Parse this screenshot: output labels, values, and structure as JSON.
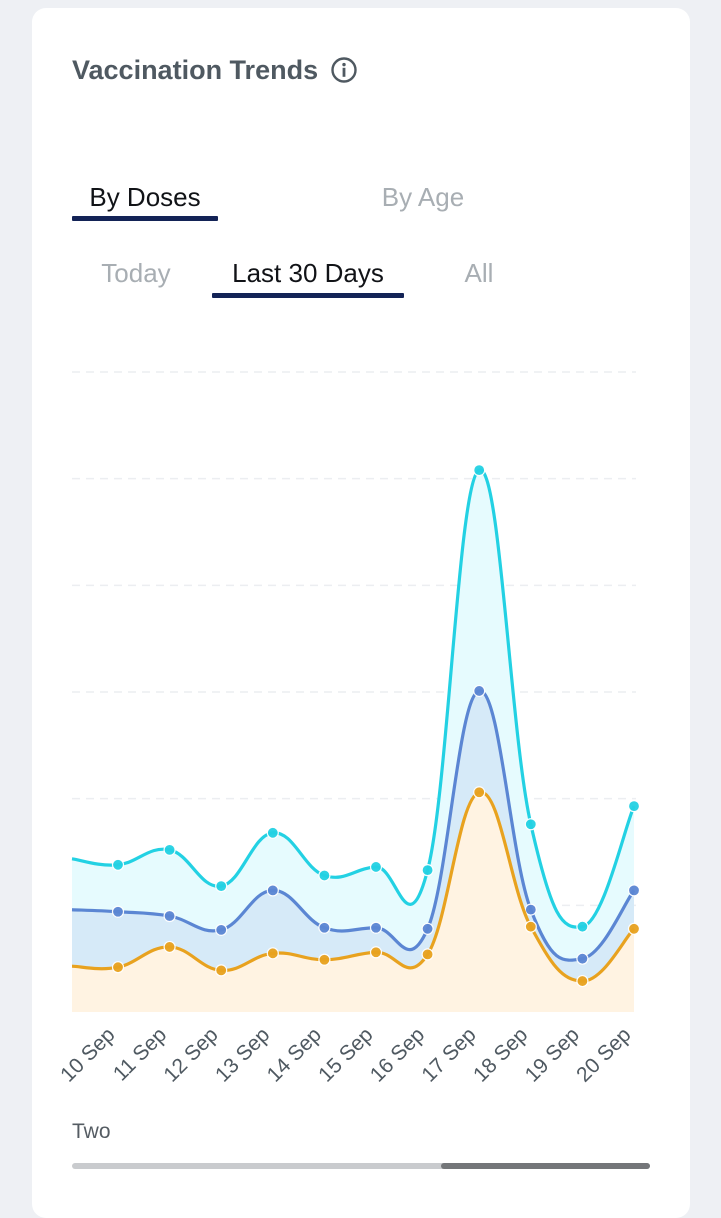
{
  "card": {
    "title": "Vaccination Trends",
    "info_icon": "info-circle-icon"
  },
  "tabs_main": [
    {
      "label": "By Doses",
      "active": true
    },
    {
      "label": "By Age",
      "active": false
    }
  ],
  "tabs_sub": [
    {
      "label": "Today",
      "active": false
    },
    {
      "label": "Last 30 Days",
      "active": true
    },
    {
      "label": "All",
      "active": false
    }
  ],
  "colors": {
    "accent_underline": "#132356",
    "total_line": "#23d1e3",
    "dose_two_line": "#5b86d3",
    "dose_one_line": "#e8a21f",
    "total_fill": "#e6fbfe",
    "dose_two_fill": "#d6eaf8",
    "dose_one_fill": "#fff3e2"
  },
  "chart_data": {
    "type": "area",
    "categories": [
      "10 Sep",
      "11 Sep",
      "12 Sep",
      "13 Sep",
      "14 Sep",
      "15 Sep",
      "16 Sep",
      "17 Sep",
      "18 Sep",
      "19 Sep",
      "20 Sep"
    ],
    "series": [
      {
        "key": "total",
        "values": [
          1.38,
          1.52,
          1.18,
          1.68,
          1.28,
          1.36,
          1.33,
          5.08,
          1.76,
          0.8,
          1.93
        ]
      },
      {
        "key": "dose_two",
        "values": [
          0.94,
          0.9,
          0.77,
          1.14,
          0.79,
          0.79,
          0.78,
          3.01,
          0.96,
          0.5,
          1.14
        ]
      },
      {
        "key": "dose_one",
        "values": [
          0.42,
          0.61,
          0.39,
          0.55,
          0.49,
          0.56,
          0.54,
          2.06,
          0.8,
          0.29,
          0.78
        ]
      }
    ],
    "ylim": [
      0,
      6
    ],
    "grid": true,
    "legend": [
      {
        "label": "Two",
        "placement": "bottom-left"
      }
    ]
  },
  "scrollbar": {
    "position_fraction": 0.64,
    "visible_fraction": 0.36
  }
}
